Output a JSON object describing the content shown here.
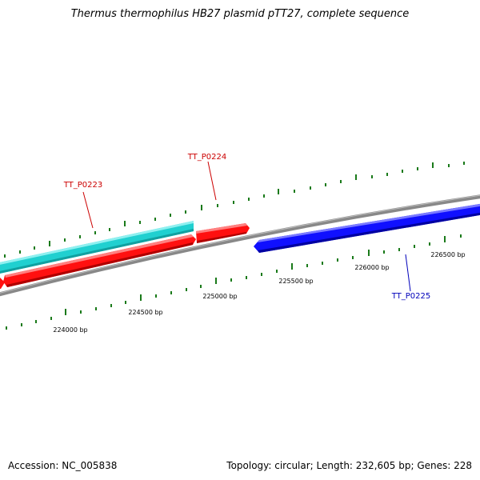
{
  "title": "Thermus thermophilus HB27 plasmid pTT27, complete sequence",
  "footer": {
    "accession": "Accession: NC_005838",
    "summary": "Topology: circular; Length: 232,605 bp; Genes: 228"
  },
  "colors": {
    "backbone": "#888888",
    "tick": "#1a7a1a",
    "forward_gene": "#ff1010",
    "reverse_gene": "#1010ff",
    "highlight_gene": "#20d0d0"
  },
  "genes": [
    {
      "label": "TT_P0223",
      "color": "#cc0000"
    },
    {
      "label": "TT_P0224",
      "color": "#cc0000"
    },
    {
      "label": "TT_P0225",
      "color": "#0000bb"
    }
  ],
  "scale_labels": [
    {
      "text": "224000 bp"
    },
    {
      "text": "224500 bp"
    },
    {
      "text": "225000 bp"
    },
    {
      "text": "225500 bp"
    },
    {
      "text": "226000 bp"
    },
    {
      "text": "226500 bp"
    }
  ]
}
